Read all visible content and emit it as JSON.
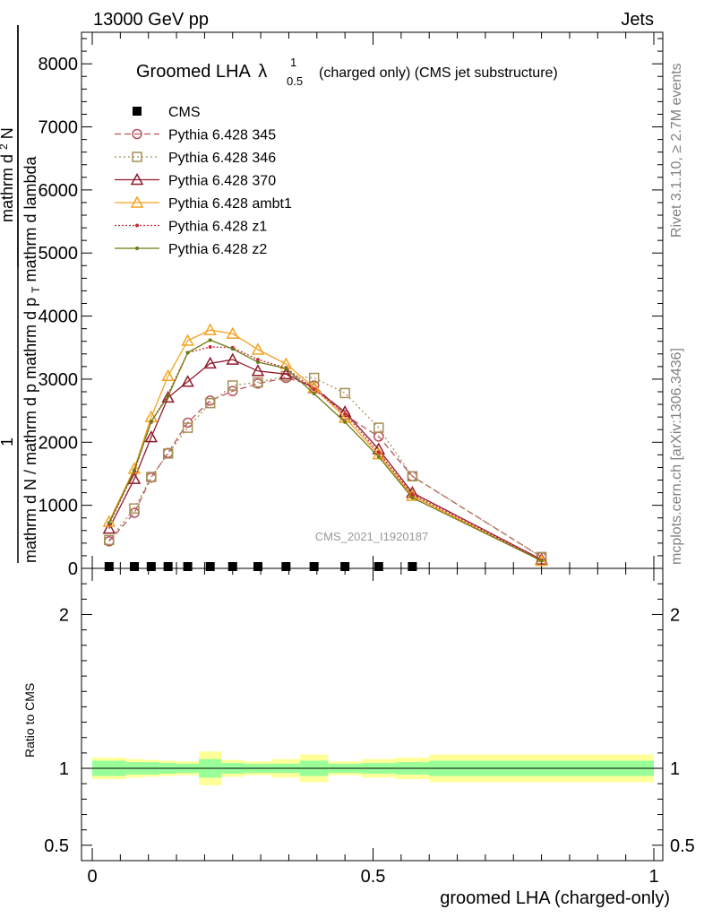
{
  "header": {
    "left": "13000 GeV pp",
    "right": "Jets"
  },
  "side_labels": {
    "rivet": "Rivet 3.1.10, ≥ 2.7M events",
    "mcplots": "mcplots.cern.ch [arXiv:1306.3436]"
  },
  "watermark": "CMS_2021_I1920187",
  "chart_data": {
    "type": "line",
    "title_main": "Groomed LHA",
    "title_lambda": "λ",
    "title_sup": "1",
    "title_sub": "0.5",
    "title_tail": "(charged only) (CMS jet substructure)",
    "xlabel": "groomed LHA (charged-only)",
    "ylabel_num": "1",
    "ylabel_den": "mathrm d N / mathrm d p",
    "ylabel_num2": "mathrm d",
    "ylabel_num2_sup": "2",
    "ylabel_num2_tail": "N",
    "ylabel_den2": "mathrm d p",
    "ylabel_den2_sub": "T",
    "ylabel_den2_tail": " mathrm d lambda",
    "xlim": [
      0,
      1
    ],
    "ylim": [
      0,
      8500
    ],
    "x_ticks": [
      0,
      0.5,
      1
    ],
    "x_tick_labels": [
      "0",
      "0.5",
      "1"
    ],
    "y_ticks": [
      0,
      1000,
      2000,
      3000,
      4000,
      5000,
      6000,
      7000,
      8000
    ],
    "y_tick_labels": [
      "0",
      "1000",
      "2000",
      "3000",
      "4000",
      "5000",
      "6000",
      "7000",
      "8000"
    ],
    "x": [
      0.03,
      0.075,
      0.105,
      0.135,
      0.17,
      0.21,
      0.25,
      0.295,
      0.345,
      0.395,
      0.45,
      0.51,
      0.57,
      0.8
    ],
    "bin_edges": [
      0,
      0.06,
      0.09,
      0.12,
      0.15,
      0.19,
      0.23,
      0.27,
      0.32,
      0.37,
      0.42,
      0.48,
      0.54,
      0.6,
      1.0
    ],
    "series": [
      {
        "name": "CMS",
        "marker": "filled-square",
        "color": "#000000",
        "dash": "none",
        "values": [
          0,
          0,
          0,
          0,
          0,
          0,
          0,
          0,
          0,
          0,
          0,
          0,
          0,
          null
        ]
      },
      {
        "name": "Pythia 6.428 345",
        "marker": "open-circle",
        "color": "#b5525d",
        "dash": "7,4",
        "values": [
          430,
          880,
          1440,
          1830,
          2310,
          2660,
          2810,
          2930,
          3020,
          2900,
          2430,
          2090,
          1460,
          180
        ]
      },
      {
        "name": "Pythia 6.428 346",
        "marker": "open-square",
        "color": "#a89055",
        "dash": "2,3",
        "values": [
          450,
          950,
          1450,
          1820,
          2230,
          2620,
          2900,
          2950,
          3050,
          3020,
          2780,
          2230,
          1460,
          180
        ]
      },
      {
        "name": "Pythia 6.428 370",
        "marker": "open-triangle",
        "color": "#8f1b2d",
        "dash": "none",
        "values": [
          630,
          1420,
          2080,
          2710,
          2960,
          3250,
          3310,
          3130,
          3080,
          2860,
          2480,
          1890,
          1200,
          140
        ]
      },
      {
        "name": "Pythia 6.428 ambt1",
        "marker": "open-triangle",
        "color": "#f5a21e",
        "dash": "none",
        "values": [
          740,
          1580,
          2400,
          3050,
          3610,
          3780,
          3720,
          3470,
          3240,
          2870,
          2390,
          1810,
          1150,
          120
        ]
      },
      {
        "name": "Pythia 6.428 z1",
        "marker": "dot",
        "color": "#c7293c",
        "dash": "2,2",
        "values": [
          700,
          1540,
          2320,
          2760,
          3420,
          3510,
          3500,
          3310,
          3180,
          2840,
          2450,
          1840,
          1170,
          130
        ]
      },
      {
        "name": "Pythia 6.428 z2",
        "marker": "dot",
        "color": "#6e7a12",
        "dash": "none",
        "values": [
          720,
          1560,
          2330,
          2730,
          3420,
          3620,
          3480,
          3270,
          3170,
          2770,
          2320,
          1770,
          1120,
          120
        ]
      }
    ],
    "ratio": {
      "ylabel": "Ratio to CMS",
      "ylim": [
        0.4,
        2.3
      ],
      "y_ticks": [
        0.5,
        1,
        2
      ],
      "y_tick_labels": [
        "0.5",
        "1",
        "2"
      ],
      "band_stat": [
        0.05,
        0.04,
        0.04,
        0.035,
        0.03,
        0.06,
        0.035,
        0.03,
        0.03,
        0.05,
        0.03,
        0.035,
        0.04,
        0.05
      ],
      "band_total": [
        0.07,
        0.06,
        0.055,
        0.05,
        0.045,
        0.11,
        0.055,
        0.045,
        0.06,
        0.09,
        0.045,
        0.06,
        0.07,
        0.09
      ]
    }
  }
}
